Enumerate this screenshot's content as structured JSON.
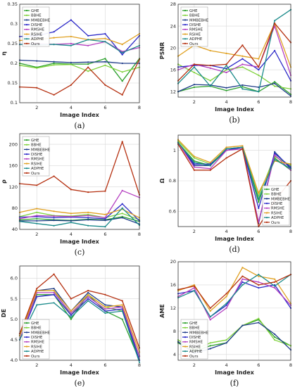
{
  "legend_labels": [
    "GHE",
    "BBHE",
    "MMBEBHE",
    "DISHE",
    "RMSHE",
    "RSIHE",
    "ADPHE",
    "Ours"
  ],
  "colors": [
    "#2ca02c",
    "#7fd13b",
    "#1f3d8a",
    "#2b28c8",
    "#b43fc0",
    "#e0a020",
    "#1a8a8a",
    "#b53010"
  ],
  "chart_data": [
    {
      "type": "line",
      "caption": "(a)",
      "xlabel": "Image Index",
      "ylabel": "η",
      "x": [
        1,
        2,
        3,
        4,
        5,
        6,
        7,
        8
      ],
      "xticks": [
        "2",
        "4",
        "6",
        "8"
      ],
      "ylim": [
        0.1,
        0.35
      ],
      "yticks": [
        "0.1",
        "0.15",
        "0.2",
        "0.25",
        "0.3",
        "0.35"
      ],
      "grid": true,
      "legend": "top-left",
      "series": [
        {
          "name": "GHE",
          "values": [
            0.2,
            0.19,
            0.2,
            0.198,
            0.198,
            0.212,
            0.155,
            0.212
          ]
        },
        {
          "name": "BBHE",
          "values": [
            0.195,
            0.188,
            0.196,
            0.197,
            0.18,
            0.195,
            0.178,
            0.19
          ]
        },
        {
          "name": "MMBEBHE",
          "values": [
            0.208,
            0.206,
            0.204,
            0.202,
            0.203,
            0.204,
            0.2,
            0.2
          ]
        },
        {
          "name": "DISHE",
          "values": [
            0.268,
            0.27,
            0.28,
            0.31,
            0.27,
            0.275,
            0.222,
            0.27
          ]
        },
        {
          "name": "RMSHE",
          "values": [
            0.248,
            0.25,
            0.248,
            0.25,
            0.245,
            0.255,
            0.23,
            0.24
          ]
        },
        {
          "name": "RSIHE",
          "values": [
            0.258,
            0.26,
            0.265,
            0.268,
            0.26,
            0.263,
            0.248,
            0.275
          ]
        },
        {
          "name": "ADPHE",
          "values": [
            0.248,
            0.247,
            0.248,
            0.245,
            0.26,
            0.255,
            0.227,
            0.245
          ]
        },
        {
          "name": "Ours",
          "values": [
            0.14,
            0.138,
            0.12,
            0.145,
            0.19,
            0.145,
            0.12,
            0.21
          ]
        }
      ]
    },
    {
      "type": "line",
      "caption": "(b)",
      "xlabel": "Image Index",
      "ylabel": "PSNR",
      "x": [
        1,
        2,
        3,
        4,
        5,
        6,
        7,
        8
      ],
      "xticks": [
        "2",
        "4",
        "6",
        "8"
      ],
      "ylim": [
        11,
        28
      ],
      "yticks": [
        "12",
        "16",
        "20",
        "24",
        "28"
      ],
      "grid": true,
      "legend": "top-left",
      "series": [
        {
          "name": "GHE",
          "values": [
            12.0,
            12.8,
            13.0,
            12.2,
            12.9,
            12.0,
            13.8,
            11.5
          ]
        },
        {
          "name": "BBHE",
          "values": [
            17.0,
            15.5,
            14.0,
            16.0,
            16.5,
            15.0,
            13.0,
            12.5
          ]
        },
        {
          "name": "MMBEBHE",
          "values": [
            12.0,
            13.3,
            13.2,
            12.7,
            13.2,
            12.8,
            13.5,
            11.2
          ]
        },
        {
          "name": "DISHE",
          "values": [
            16.5,
            16.8,
            16.8,
            16.2,
            18.0,
            16.0,
            19.5,
            14.0
          ]
        },
        {
          "name": "RMSHE",
          "values": [
            16.0,
            17.0,
            16.3,
            15.5,
            17.0,
            16.5,
            24.0,
            15.0
          ]
        },
        {
          "name": "RSIHE",
          "values": [
            18.5,
            20.5,
            19.5,
            19.0,
            18.5,
            18.0,
            24.5,
            16.5
          ]
        },
        {
          "name": "ADPHE",
          "values": [
            13.5,
            16.5,
            13.0,
            16.8,
            12.5,
            12.0,
            25.0,
            27.0
          ]
        },
        {
          "name": "Ours",
          "values": [
            14.0,
            17.0,
            16.8,
            17.0,
            20.5,
            16.5,
            24.5,
            21.0
          ]
        }
      ]
    },
    {
      "type": "line",
      "caption": "(c)",
      "xlabel": "Image Index",
      "ylabel": "ρ",
      "x": [
        1,
        2,
        3,
        4,
        5,
        6,
        7,
        8
      ],
      "xticks": [
        "2",
        "4",
        "6",
        "8"
      ],
      "ylim": [
        40,
        220
      ],
      "yticks": [
        "40",
        "80",
        "120",
        "160",
        "200"
      ],
      "grid": true,
      "legend": "top-left",
      "series": [
        {
          "name": "GHE",
          "values": [
            58,
            60,
            58,
            57,
            59,
            58,
            64,
            55
          ]
        },
        {
          "name": "BBHE",
          "values": [
            64,
            72,
            66,
            65,
            68,
            62,
            70,
            58
          ]
        },
        {
          "name": "MMBEBHE",
          "values": [
            56,
            56,
            57,
            56,
            58,
            57,
            62,
            50
          ]
        },
        {
          "name": "DISHE",
          "values": [
            63,
            64,
            62,
            63,
            62,
            60,
            88,
            56
          ]
        },
        {
          "name": "RMSHE",
          "values": [
            60,
            66,
            65,
            64,
            66,
            62,
            113,
            100
          ]
        },
        {
          "name": "RSIHE",
          "values": [
            72,
            79,
            74,
            70,
            72,
            68,
            78,
            62
          ]
        },
        {
          "name": "ADPHE",
          "values": [
            55,
            51,
            47,
            53,
            47,
            45,
            80,
            48
          ]
        },
        {
          "name": "Ours",
          "values": [
            126,
            123,
            140,
            115,
            110,
            112,
            205,
            105
          ]
        }
      ]
    },
    {
      "type": "line",
      "caption": "(d)",
      "xlabel": "Image Index",
      "ylabel": "Ω",
      "x": [
        1,
        2,
        3,
        4,
        5,
        6,
        7,
        8
      ],
      "xticks": [
        "2",
        "4",
        "6",
        "8"
      ],
      "ylim": [
        0.5,
        1.1
      ],
      "yticks": [
        "0.6",
        "0.8",
        "1"
      ],
      "grid": true,
      "legend": "bottom-right",
      "series": [
        {
          "name": "GHE",
          "values": [
            1.05,
            0.93,
            0.9,
            1.0,
            1.02,
            0.66,
            0.95,
            0.87
          ]
        },
        {
          "name": "BBHE",
          "values": [
            1.06,
            0.95,
            0.91,
            1.01,
            1.02,
            0.7,
            0.96,
            0.9
          ]
        },
        {
          "name": "MMBEBHE",
          "values": [
            1.05,
            0.9,
            0.9,
            1.01,
            1.02,
            0.52,
            0.99,
            0.88
          ]
        },
        {
          "name": "DISHE",
          "values": [
            1.05,
            0.91,
            0.91,
            1.0,
            1.02,
            0.62,
            0.98,
            0.89
          ]
        },
        {
          "name": "RMSHE",
          "values": [
            1.05,
            0.89,
            0.88,
            1.0,
            1.01,
            0.53,
            0.97,
            0.87
          ]
        },
        {
          "name": "RSIHE",
          "values": [
            1.07,
            0.96,
            0.92,
            1.02,
            1.03,
            0.72,
            0.93,
            0.91
          ]
        },
        {
          "name": "ADPHE",
          "values": [
            1.05,
            0.92,
            0.9,
            1.01,
            1.02,
            0.68,
            0.94,
            0.88
          ]
        },
        {
          "name": "Ours",
          "values": [
            1.04,
            0.87,
            0.87,
            0.95,
            1.01,
            0.5,
            0.67,
            0.8
          ]
        }
      ]
    },
    {
      "type": "line",
      "caption": "(e)",
      "xlabel": "Image Index",
      "ylabel": "DE",
      "x": [
        1,
        2,
        3,
        4,
        5,
        6,
        7,
        8
      ],
      "xticks": [
        "2",
        "4",
        "6",
        "8"
      ],
      "ylim": [
        4.0,
        6.3
      ],
      "yticks": [
        "4.0",
        "4.5",
        "5.0",
        "5.5",
        "6.0"
      ],
      "grid": true,
      "legend": "bottom-left",
      "series": [
        {
          "name": "GHE",
          "values": [
            4.6,
            5.6,
            5.6,
            5.0,
            5.6,
            5.2,
            5.0,
            4.0
          ]
        },
        {
          "name": "BBHE",
          "values": [
            4.6,
            5.7,
            5.7,
            5.1,
            5.6,
            5.3,
            5.2,
            4.1
          ]
        },
        {
          "name": "MMBEBHE",
          "values": [
            4.6,
            5.7,
            5.75,
            5.2,
            5.65,
            5.35,
            5.3,
            4.0
          ]
        },
        {
          "name": "DISHE",
          "values": [
            4.5,
            5.55,
            5.6,
            5.1,
            5.5,
            5.2,
            5.25,
            4.0
          ]
        },
        {
          "name": "RMSHE",
          "values": [
            4.5,
            5.65,
            5.65,
            5.15,
            5.55,
            5.25,
            5.3,
            4.1
          ]
        },
        {
          "name": "RSIHE",
          "values": [
            4.6,
            5.7,
            5.7,
            5.2,
            5.6,
            5.3,
            5.35,
            4.2
          ]
        },
        {
          "name": "ADPHE",
          "values": [
            4.5,
            5.35,
            5.4,
            5.05,
            5.45,
            5.15,
            5.2,
            3.95
          ]
        },
        {
          "name": "Ours",
          "values": [
            4.65,
            5.75,
            6.1,
            5.5,
            5.7,
            5.6,
            5.45,
            4.3
          ]
        }
      ]
    },
    {
      "type": "line",
      "caption": "(f)",
      "xlabel": "Image Index",
      "ylabel": "AME",
      "x": [
        1,
        2,
        3,
        4,
        5,
        6,
        7,
        8
      ],
      "xticks": [
        "2",
        "4",
        "6",
        "8"
      ],
      "ylim": [
        3,
        20
      ],
      "yticks": [
        "4",
        "8",
        "12",
        "16",
        "20"
      ],
      "grid": true,
      "legend": "bottom-left",
      "series": [
        {
          "name": "GHE",
          "values": [
            6.0,
            4.5,
            5.5,
            6.0,
            9.0,
            10.0,
            7.0,
            5.5
          ]
        },
        {
          "name": "BBHE",
          "values": [
            6.5,
            4.8,
            6.0,
            6.5,
            9.0,
            10.2,
            6.5,
            5.5
          ]
        },
        {
          "name": "MMBEBHE",
          "values": [
            6.2,
            4.2,
            5.0,
            6.0,
            9.0,
            9.5,
            7.5,
            4.8
          ]
        },
        {
          "name": "DISHE",
          "values": [
            14.5,
            15.0,
            10.5,
            12.5,
            16.5,
            15.5,
            16.0,
            12.0
          ]
        },
        {
          "name": "RMSHE",
          "values": [
            14.0,
            15.5,
            10.0,
            12.0,
            17.0,
            16.5,
            15.5,
            12.5
          ]
        },
        {
          "name": "RSIHE",
          "values": [
            15.0,
            16.0,
            11.5,
            14.0,
            19.0,
            17.5,
            17.0,
            12.8
          ]
        },
        {
          "name": "ADPHE",
          "values": [
            13.8,
            15.0,
            10.5,
            12.8,
            16.0,
            17.8,
            15.8,
            17.8
          ]
        },
        {
          "name": "Ours",
          "values": [
            15.2,
            15.8,
            12.0,
            14.5,
            17.5,
            16.0,
            16.5,
            17.8
          ]
        }
      ]
    }
  ]
}
